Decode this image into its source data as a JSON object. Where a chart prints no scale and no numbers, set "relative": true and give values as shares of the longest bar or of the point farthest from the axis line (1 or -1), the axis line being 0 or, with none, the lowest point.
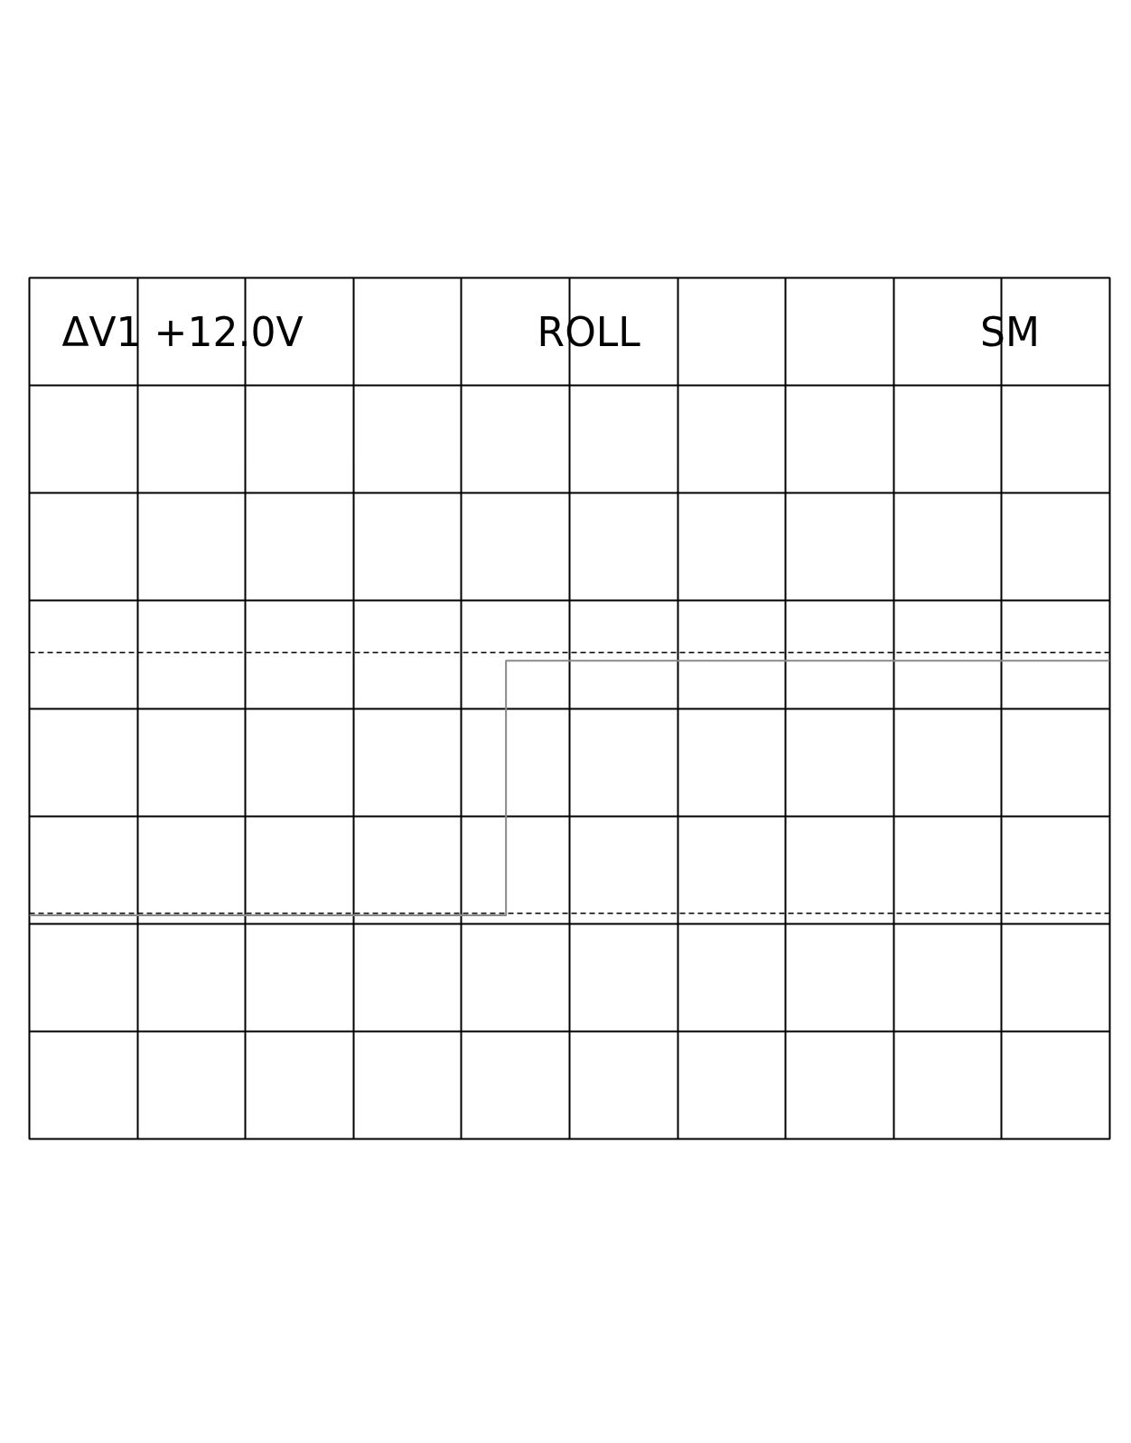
{
  "chart_data": {
    "type": "step",
    "relative": true,
    "categories": [
      null,
      null,
      null,
      null,
      null,
      null,
      null,
      null,
      null,
      null,
      null,
      null,
      null,
      null,
      null,
      null,
      null,
      null,
      null,
      null,
      null,
      null,
      null,
      null,
      null,
      null,
      null,
      null,
      null,
      null,
      null,
      null,
      null,
      null,
      null
    ],
    "series": [
      {
        "color": "#8a8a8a",
        "values": [
          -1,
          -1,
          -1,
          -1,
          -1,
          -1,
          -1,
          -1,
          -1,
          -1,
          -1,
          -1,
          -1,
          -1,
          -1,
          0.23,
          0.23,
          0.23,
          0.23,
          0.23,
          0.23,
          0.23,
          0.23,
          0.23,
          0.23,
          0.23,
          0.23,
          0.23,
          0.23,
          0.23,
          0.23,
          0.23,
          0.23,
          0.23,
          0.23
        ]
      }
    ],
    "ref_lines": [
      {
        "axis": "y",
        "value": 0.27,
        "color": "#000000",
        "line_style": "dashed"
      },
      {
        "axis": "y",
        "value": -0.99,
        "color": "#000000",
        "line_style": "dashed"
      }
    ],
    "annotations": [
      "ΔV1  +12.0V",
      "ROLL",
      "SM"
    ],
    "grid": true
  }
}
